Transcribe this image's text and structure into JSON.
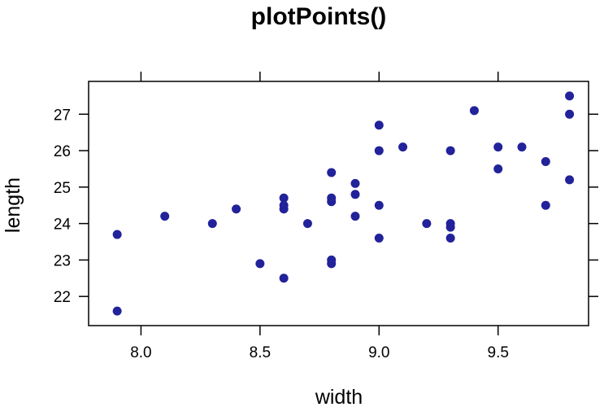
{
  "chart_data": {
    "type": "scatter",
    "title": "plotPoints()",
    "xlabel": "width",
    "ylabel": "length",
    "xlim": [
      7.78,
      9.88
    ],
    "ylim": [
      21.2,
      27.9
    ],
    "xticks": [
      8.0,
      8.5,
      9.0,
      9.5
    ],
    "xtick_labels": [
      "8.0",
      "8.5",
      "9.0",
      "9.5"
    ],
    "yticks": [
      22,
      23,
      24,
      25,
      26,
      27
    ],
    "ytick_labels": [
      "22",
      "23",
      "24",
      "25",
      "26",
      "27"
    ],
    "grid": false,
    "point_color": "#22229a",
    "points": [
      {
        "x": 7.9,
        "y": 21.6
      },
      {
        "x": 7.9,
        "y": 23.7
      },
      {
        "x": 8.1,
        "y": 24.2
      },
      {
        "x": 8.3,
        "y": 24.0
      },
      {
        "x": 8.4,
        "y": 24.4
      },
      {
        "x": 8.5,
        "y": 22.9
      },
      {
        "x": 8.6,
        "y": 22.5
      },
      {
        "x": 8.6,
        "y": 24.4
      },
      {
        "x": 8.6,
        "y": 24.5
      },
      {
        "x": 8.6,
        "y": 24.7
      },
      {
        "x": 8.7,
        "y": 24.0
      },
      {
        "x": 8.8,
        "y": 22.9
      },
      {
        "x": 8.8,
        "y": 23.0
      },
      {
        "x": 8.8,
        "y": 24.6
      },
      {
        "x": 8.8,
        "y": 24.7
      },
      {
        "x": 8.8,
        "y": 25.4
      },
      {
        "x": 8.9,
        "y": 24.2
      },
      {
        "x": 8.9,
        "y": 24.8
      },
      {
        "x": 8.9,
        "y": 25.1
      },
      {
        "x": 9.0,
        "y": 23.6
      },
      {
        "x": 9.0,
        "y": 24.5
      },
      {
        "x": 9.0,
        "y": 26.0
      },
      {
        "x": 9.0,
        "y": 26.7
      },
      {
        "x": 9.1,
        "y": 26.1
      },
      {
        "x": 9.2,
        "y": 24.0
      },
      {
        "x": 9.3,
        "y": 23.6
      },
      {
        "x": 9.3,
        "y": 23.9
      },
      {
        "x": 9.3,
        "y": 24.0
      },
      {
        "x": 9.3,
        "y": 26.0
      },
      {
        "x": 9.4,
        "y": 27.1
      },
      {
        "x": 9.5,
        "y": 25.5
      },
      {
        "x": 9.5,
        "y": 26.1
      },
      {
        "x": 9.6,
        "y": 26.1
      },
      {
        "x": 9.7,
        "y": 24.5
      },
      {
        "x": 9.7,
        "y": 25.7
      },
      {
        "x": 9.8,
        "y": 25.2
      },
      {
        "x": 9.8,
        "y": 27.0
      },
      {
        "x": 9.8,
        "y": 27.5
      }
    ]
  }
}
